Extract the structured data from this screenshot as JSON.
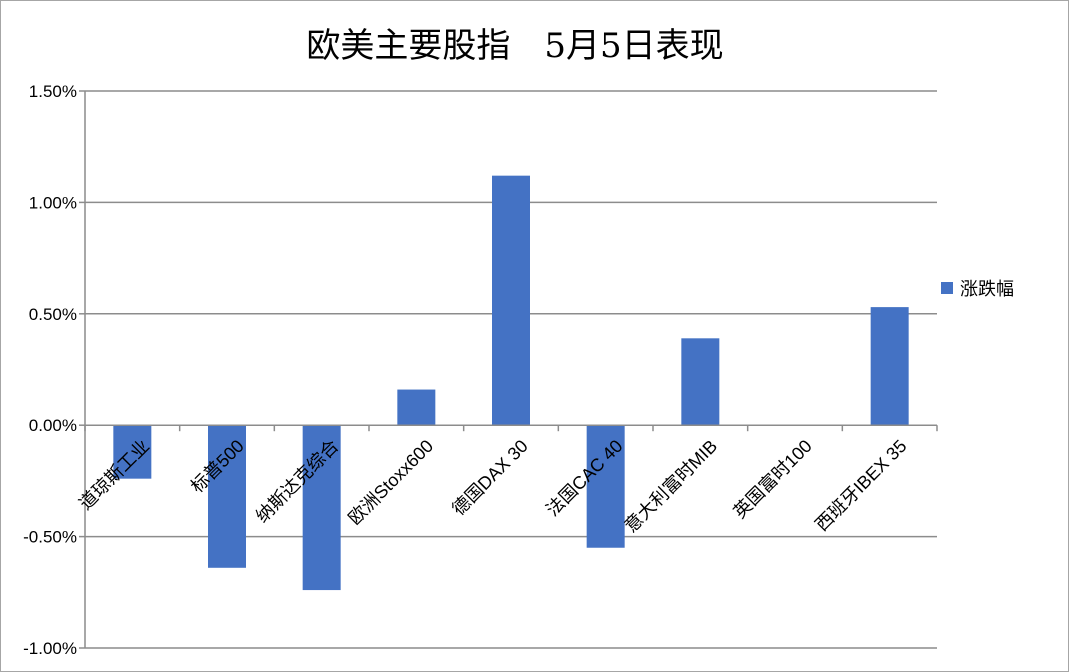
{
  "chart_data": {
    "type": "bar",
    "title": "欧美主要股指　5月5日表现",
    "categories": [
      "道琼斯工业",
      "标普500",
      "纳斯达克综合",
      "欧洲Stoxx600",
      "德国DAX 30",
      "法国CAC 40",
      "意大利富时MIB",
      "英国富时100",
      "西班牙IBEX 35"
    ],
    "series": [
      {
        "name": "涨跌幅",
        "color": "#4472c4",
        "values": [
          -0.0024,
          -0.0064,
          -0.0074,
          0.0016,
          0.0112,
          -0.0055,
          0.0039,
          0.0,
          0.0053
        ]
      }
    ],
    "ylim": [
      -0.01,
      0.015
    ],
    "yticks": [
      0.015,
      0.01,
      0.005,
      0.0,
      -0.005,
      -0.01
    ],
    "ytick_labels": [
      "1.50%",
      "1.00%",
      "0.50%",
      "0.00%",
      "-0.50%",
      "-1.00%"
    ],
    "grid": true,
    "legend_position": "right",
    "legend_label": "涨跌幅"
  }
}
